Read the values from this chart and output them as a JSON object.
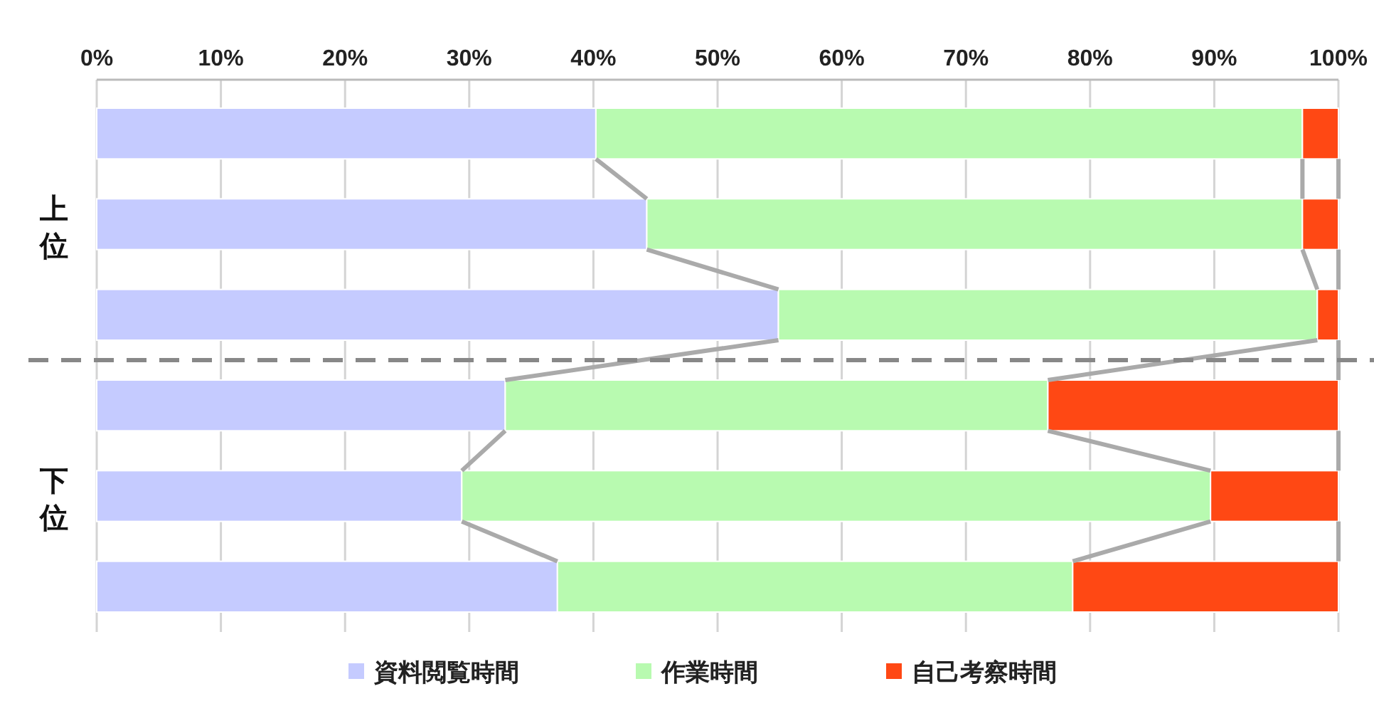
{
  "chart_data": {
    "type": "bar",
    "orientation": "horizontal",
    "stacked": true,
    "categories": [
      null,
      null,
      null,
      null,
      null,
      null
    ],
    "series": [
      {
        "name": "資料閲覧時間",
        "color": "#c5cbff",
        "values": [
          40.2,
          44.3,
          54.9,
          32.9,
          29.4,
          37.1
        ]
      },
      {
        "name": "作業時間",
        "color": "#b8fab0",
        "values": [
          56.9,
          52.8,
          43.4,
          43.7,
          60.3,
          41.5
        ]
      },
      {
        "name": "自己考察時間",
        "color": "#ff4814",
        "values": [
          2.9,
          2.9,
          1.7,
          23.4,
          10.3,
          21.4
        ]
      }
    ],
    "xlim": [
      0,
      100
    ],
    "xticks": [
      {
        "value": 0,
        "label": "0%"
      },
      {
        "value": 10,
        "label": "10%"
      },
      {
        "value": 20,
        "label": "20%"
      },
      {
        "value": 30,
        "label": "30%"
      },
      {
        "value": 40,
        "label": "40%"
      },
      {
        "value": 50,
        "label": "50%"
      },
      {
        "value": 60,
        "label": "60%"
      },
      {
        "value": 70,
        "label": "70%"
      },
      {
        "value": 80,
        "label": "80%"
      },
      {
        "value": 90,
        "label": "90%"
      },
      {
        "value": 100,
        "label": "100%"
      }
    ],
    "grid": "x",
    "legend": "bottom",
    "annotations": [
      "上位",
      "下位"
    ]
  }
}
